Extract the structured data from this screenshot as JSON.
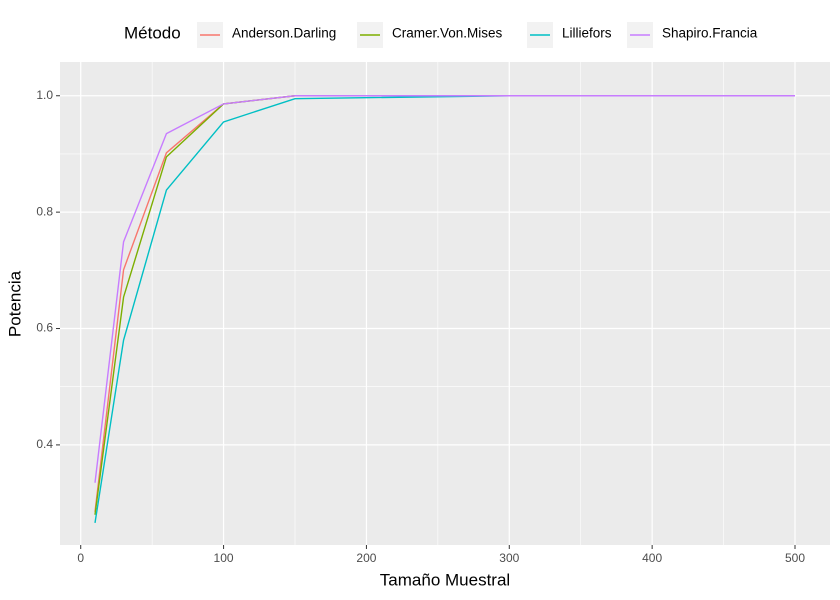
{
  "chart_data": {
    "type": "line",
    "x_label": "Tamaño Muestral",
    "y_label": "Potencia",
    "legend_title": "Método",
    "legend_position": "top",
    "x": [
      10,
      30,
      60,
      100,
      150,
      300,
      500
    ],
    "series": [
      {
        "name": "Anderson.Darling",
        "color": "#F8766D",
        "values": [
          0.285,
          0.701,
          0.902,
          0.986,
          1.0,
          1.0,
          1.0
        ]
      },
      {
        "name": "Cramer.Von.Mises",
        "color": "#7CAE00",
        "values": [
          0.28,
          0.654,
          0.895,
          0.986,
          1.0,
          1.0,
          1.0
        ]
      },
      {
        "name": "Lilliefors",
        "color": "#00BFC4",
        "values": [
          0.266,
          0.58,
          0.838,
          0.955,
          0.995,
          1.0,
          1.0
        ]
      },
      {
        "name": "Shapiro.Francia",
        "color": "#C77CFF",
        "values": [
          0.335,
          0.749,
          0.935,
          0.986,
          1.0,
          1.0,
          1.0
        ]
      }
    ],
    "xlim": [
      -14.5,
      524.5
    ],
    "xticks": [
      0,
      100,
      200,
      300,
      400,
      500
    ],
    "ylim": [
      0.228,
      1.058
    ],
    "yticks": [
      0.4,
      0.6,
      0.8,
      {
        "value": 1.0,
        "label": "1.0"
      }
    ],
    "grid": true
  }
}
